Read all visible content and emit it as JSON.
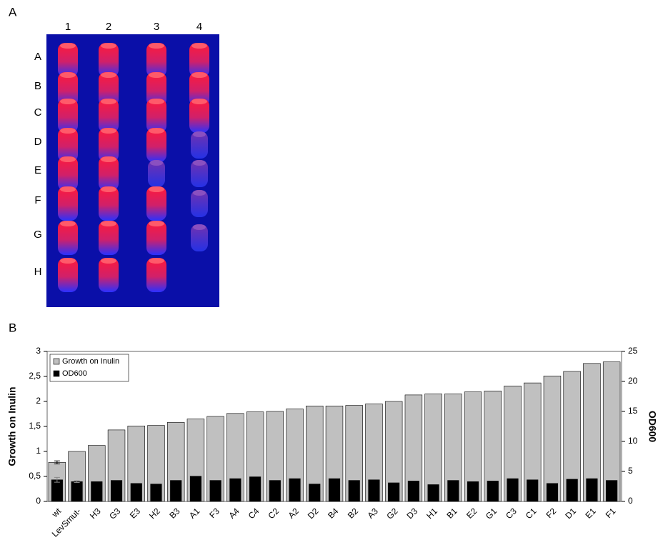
{
  "panel_a": {
    "label": "A",
    "columns": [
      "1",
      "2",
      "3",
      "4"
    ],
    "rows": [
      "A",
      "B",
      "C",
      "D",
      "E",
      "F",
      "G",
      "H"
    ]
  },
  "chart_data": {
    "type": "bar",
    "panel_label": "B",
    "categories": [
      "wt",
      "LevSmut-",
      "H3",
      "G3",
      "E3",
      "H2",
      "B3",
      "A1",
      "F3",
      "A4",
      "C4",
      "C2",
      "A2",
      "D2",
      "B4",
      "B2",
      "A3",
      "G2",
      "D3",
      "H1",
      "B1",
      "E2",
      "G1",
      "C3",
      "C1",
      "F2",
      "D1",
      "E1",
      "F1"
    ],
    "series": [
      {
        "name": "Growth on Inulin",
        "color": "#c0c0c0",
        "values": [
          0.78,
          1.0,
          1.12,
          1.43,
          1.51,
          1.52,
          1.58,
          1.65,
          1.7,
          1.76,
          1.79,
          1.8,
          1.85,
          1.91,
          1.91,
          1.92,
          1.95,
          2.0,
          2.13,
          2.15,
          2.15,
          2.19,
          2.21,
          2.31,
          2.37,
          2.51,
          2.6,
          2.76,
          2.79
        ],
        "errors": [
          0.03,
          null,
          null,
          null,
          null,
          null,
          null,
          null,
          null,
          null,
          null,
          null,
          null,
          null,
          null,
          null,
          null,
          null,
          null,
          null,
          null,
          null,
          null,
          null,
          null,
          null,
          null,
          null,
          null
        ]
      },
      {
        "name": "OD600",
        "color": "#000000",
        "axis": "y2",
        "values": [
          3.6,
          3.3,
          3.3,
          3.5,
          3.0,
          2.9,
          3.5,
          4.2,
          3.5,
          3.8,
          4.1,
          3.5,
          3.8,
          2.9,
          3.8,
          3.5,
          3.6,
          3.1,
          3.4,
          2.8,
          3.5,
          3.3,
          3.4,
          3.8,
          3.6,
          3.0,
          3.7,
          3.8,
          3.5
        ],
        "errors": [
          0.4,
          0.15,
          null,
          null,
          null,
          null,
          null,
          null,
          null,
          null,
          null,
          null,
          null,
          null,
          null,
          null,
          null,
          null,
          null,
          null,
          null,
          null,
          null,
          null,
          null,
          null,
          null,
          null,
          null
        ]
      }
    ],
    "y_label": "Growth on Inulin",
    "y2_label": "OD600",
    "ylim": [
      0,
      3
    ],
    "yticks": [
      0,
      {
        "value": 0.5,
        "label": "0,5"
      },
      1,
      {
        "value": 1.5,
        "label": "1,5"
      },
      2,
      {
        "value": 2.5,
        "label": "2,5"
      },
      3
    ],
    "y2lim": [
      0,
      25
    ],
    "y2ticks": [
      0,
      5,
      10,
      15,
      20,
      25
    ],
    "legend": "top-left"
  }
}
